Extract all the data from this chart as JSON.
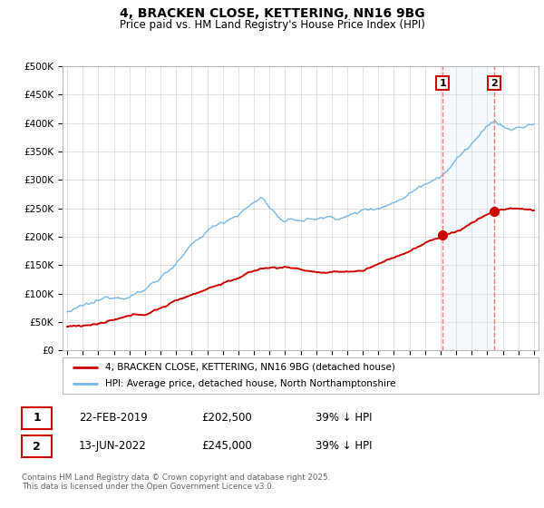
{
  "title1": "4, BRACKEN CLOSE, KETTERING, NN16 9BG",
  "title2": "Price paid vs. HM Land Registry's House Price Index (HPI)",
  "ylabel_ticks": [
    "£0",
    "£50K",
    "£100K",
    "£150K",
    "£200K",
    "£250K",
    "£300K",
    "£350K",
    "£400K",
    "£450K",
    "£500K"
  ],
  "ytick_values": [
    0,
    50000,
    100000,
    150000,
    200000,
    250000,
    300000,
    350000,
    400000,
    450000,
    500000
  ],
  "ylim": [
    0,
    500000
  ],
  "xlim_start": 1994.7,
  "xlim_end": 2025.3,
  "hpi_color": "#7ab8e8",
  "price_color": "#cc0000",
  "vline_color": "#e88080",
  "annotation_box_color": "#cc0000",
  "transaction1_x": 2019.13,
  "transaction1_y": 202500,
  "transaction2_x": 2022.45,
  "transaction2_y": 245000,
  "legend_line1": "4, BRACKEN CLOSE, KETTERING, NN16 9BG (detached house)",
  "legend_line2": "HPI: Average price, detached house, North Northamptonshire",
  "table_row1": [
    "1",
    "22-FEB-2019",
    "£202,500",
    "39% ↓ HPI"
  ],
  "table_row2": [
    "2",
    "13-JUN-2022",
    "£245,000",
    "39% ↓ HPI"
  ],
  "footer": "Contains HM Land Registry data © Crown copyright and database right 2025.\nThis data is licensed under the Open Government Licence v3.0.",
  "background_color": "#ffffff",
  "grid_color": "#dddddd"
}
